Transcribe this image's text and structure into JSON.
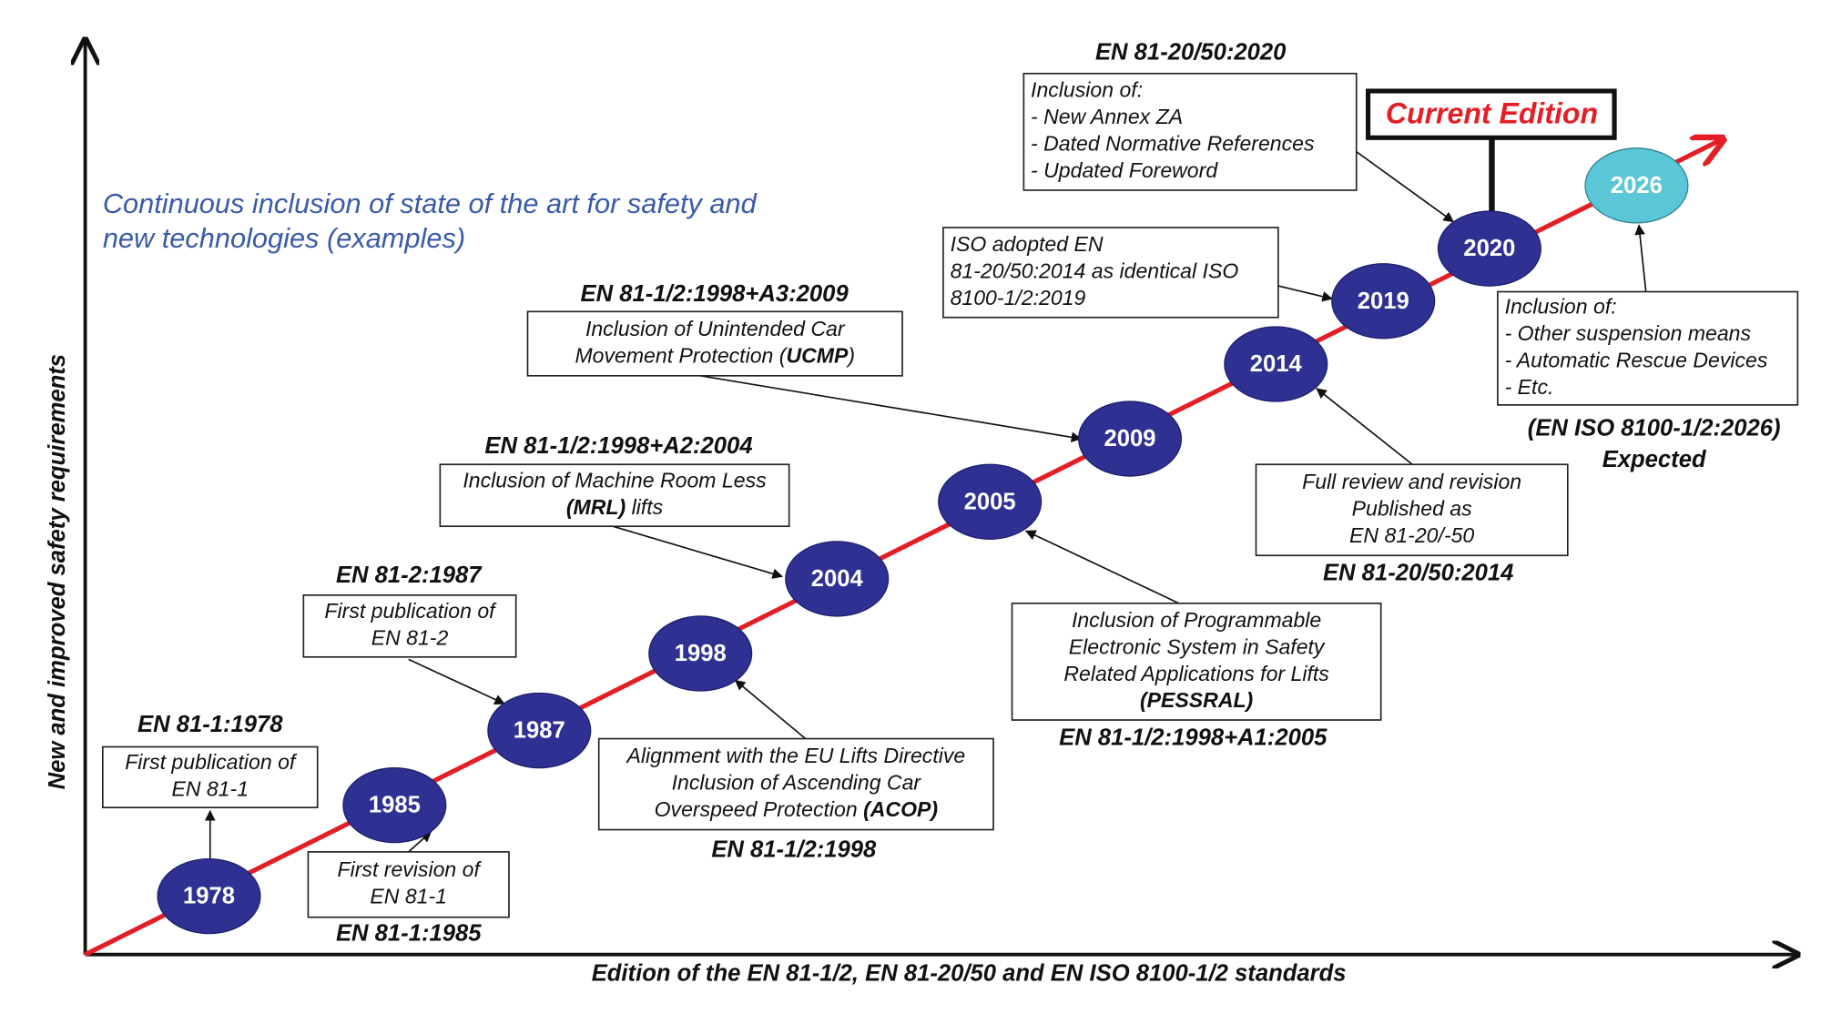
{
  "axes": {
    "y_label": "New and improved safety requirements",
    "x_label": "Edition of the EN 81-1/2, EN 81-20/50 and EN ISO 8100-1/2 standards"
  },
  "subtitle": [
    "Continuous inclusion of state of the art for safety and",
    "new technologies (examples)"
  ],
  "milestones": [
    "1978",
    "1985",
    "1987",
    "1998",
    "2004",
    "2005",
    "2009",
    "2014",
    "2019",
    "2020",
    "2026"
  ],
  "current_edition": "Current Edition",
  "callouts": [
    {
      "standard": "EN 81-1:1978",
      "lines": [
        "First publication of",
        "EN 81-1"
      ]
    },
    {
      "standard": "EN 81-1:1985",
      "lines": [
        "First revision of",
        "EN 81-1"
      ]
    },
    {
      "standard": "EN 81-2:1987",
      "lines": [
        "First publication of",
        "EN 81-2"
      ]
    },
    {
      "standard": "EN 81-1/2:1998",
      "lines": [
        "Alignment with the EU Lifts Directive",
        "Inclusion of Ascending Car",
        [
          {
            "text": "Overspeed Protection "
          },
          {
            "text": "(ACOP)",
            "bold": true
          }
        ]
      ]
    },
    {
      "standard": "EN 81-1/2:1998+A2:2004",
      "lines": [
        "Inclusion of Machine Room Less",
        [
          {
            "text": "(MRL)",
            "bold": true
          },
          {
            "text": " lifts"
          }
        ]
      ]
    },
    {
      "standard": "EN 81-1/2:1998+A3:2009",
      "lines": [
        "Inclusion of Unintended Car",
        [
          {
            "text": "Movement Protection ("
          },
          {
            "text": "UCMP",
            "bold": true
          },
          {
            "text": ")"
          }
        ]
      ]
    },
    {
      "standard": "EN 81-1/2:1998+A1:2005",
      "lines": [
        "Inclusion of Programmable",
        "Electronic System in Safety",
        "Related Applications for Lifts",
        [
          {
            "text": "(PESSRAL)",
            "bold": true
          }
        ]
      ]
    },
    {
      "lines": [
        "ISO adopted EN",
        "81-20/50:2014 as identical ISO",
        "8100-1/2:2019"
      ]
    },
    {
      "standard": "EN 81-20/50:2014",
      "lines": [
        "Full review and revision",
        "Published as",
        "EN 81-20/-50"
      ]
    },
    {
      "standard": "EN 81-20/50:2020",
      "lines": [
        "Inclusion of:",
        "- New Annex ZA",
        "- Dated Normative References",
        "- Updated Foreword"
      ]
    },
    {
      "lines": [
        "Inclusion of:",
        "- Other suspension means",
        "- Automatic Rescue Devices",
        "- Etc."
      ],
      "note": [
        "(EN ISO 8100-1/2:2026)",
        "Expected"
      ]
    }
  ]
}
